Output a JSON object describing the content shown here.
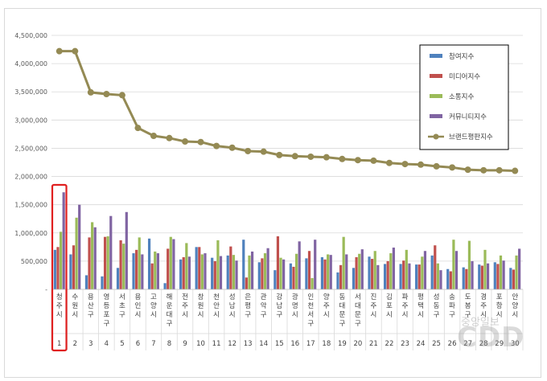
{
  "chart_data": {
    "type": "bar",
    "title": "",
    "xlabel": "",
    "ylabel": "",
    "ylim": [
      0,
      4500000
    ],
    "y_ticks": [
      "-",
      "500,000",
      "1,000,000",
      "1,500,000",
      "2,000,000",
      "2,500,000",
      "3,000,000",
      "3,500,000",
      "4,000,000",
      "4,500,000"
    ],
    "grid": true,
    "legend_position": "top-right",
    "categories": [
      "청주시",
      "수원시",
      "용산구",
      "영등포구",
      "서초구",
      "용인시",
      "고양시",
      "해운대구",
      "전주시",
      "창원시",
      "천안시",
      "성남시",
      "은평구",
      "관악구",
      "강남구",
      "광명시",
      "인천서구",
      "양주시",
      "동대문구",
      "서대문구",
      "진주시",
      "김포시",
      "파주시",
      "평택시",
      "성동구",
      "송파구",
      "도봉구",
      "경주시",
      "포항시",
      "안양시"
    ],
    "ranks": [
      "1",
      "2",
      "3",
      "4",
      "5",
      "6",
      "7",
      "8",
      "9",
      "10",
      "11",
      "12",
      "13",
      "14",
      "15",
      "16",
      "17",
      "18",
      "19",
      "20",
      "21",
      "22",
      "23",
      "24",
      "25",
      "26",
      "27",
      "28",
      "29",
      "30"
    ],
    "series": [
      {
        "name": "참여지수",
        "color": "#4f81bd",
        "values": [
          700000,
          620000,
          250000,
          230000,
          380000,
          640000,
          900000,
          110000,
          530000,
          750000,
          560000,
          600000,
          880000,
          480000,
          340000,
          460000,
          550000,
          570000,
          300000,
          380000,
          580000,
          450000,
          450000,
          440000,
          600000,
          360000,
          390000,
          440000,
          480000,
          380000
        ]
      },
      {
        "name": "미디어지수",
        "color": "#c0504d",
        "values": [
          750000,
          780000,
          920000,
          930000,
          870000,
          700000,
          460000,
          720000,
          570000,
          750000,
          500000,
          760000,
          210000,
          550000,
          940000,
          400000,
          680000,
          530000,
          430000,
          570000,
          540000,
          500000,
          510000,
          440000,
          780000,
          320000,
          360000,
          420000,
          450000,
          350000
        ]
      },
      {
        "name": "소통지수",
        "color": "#9bbb59",
        "values": [
          1020000,
          1270000,
          1190000,
          940000,
          810000,
          920000,
          670000,
          930000,
          820000,
          620000,
          870000,
          610000,
          600000,
          640000,
          560000,
          630000,
          200000,
          620000,
          930000,
          630000,
          680000,
          640000,
          700000,
          580000,
          460000,
          880000,
          860000,
          700000,
          600000,
          600000
        ]
      },
      {
        "name": "커뮤니티지수",
        "color": "#8064a2",
        "values": [
          1720000,
          1500000,
          1100000,
          1300000,
          1370000,
          620000,
          640000,
          890000,
          580000,
          640000,
          590000,
          510000,
          670000,
          730000,
          530000,
          850000,
          880000,
          610000,
          620000,
          710000,
          430000,
          740000,
          460000,
          680000,
          340000,
          680000,
          500000,
          460000,
          510000,
          720000
        ]
      },
      {
        "name": "브랜드평판지수",
        "color": "#948a54",
        "values": [
          4220000,
          4220000,
          3490000,
          3460000,
          3440000,
          2860000,
          2720000,
          2680000,
          2620000,
          2610000,
          2540000,
          2510000,
          2450000,
          2440000,
          2380000,
          2360000,
          2350000,
          2340000,
          2310000,
          2290000,
          2280000,
          2240000,
          2220000,
          2210000,
          2180000,
          2160000,
          2120000,
          2110000,
          2110000,
          2100000
        ]
      }
    ],
    "highlight_index": 0,
    "highlight_color": "#e02020"
  },
  "watermark": {
    "text": "CDD",
    "subtext": "중앙일보"
  }
}
